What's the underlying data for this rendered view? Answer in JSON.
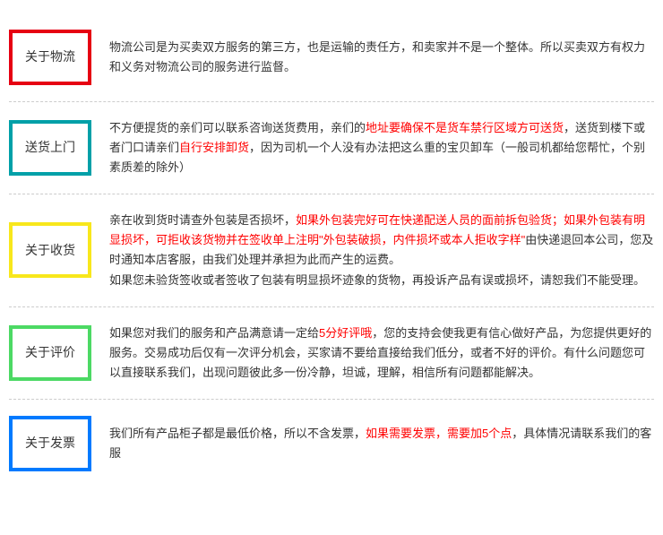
{
  "sections": [
    {
      "id": "logistics",
      "label": "关于物流",
      "border_color": "#e60012",
      "border_width": 4,
      "parts": [
        {
          "text": "物流公司是为买卖双方服务的第三方，也是运输的责任方，和卖家并不是一个整体。所以买卖双方有权力和义务对物流公司的服务进行监督。",
          "red": false
        }
      ]
    },
    {
      "id": "delivery",
      "label": "送货上门",
      "border_color": "#00a0a8",
      "border_width": 4,
      "parts": [
        {
          "text": "不方便提货的亲们可以联系咨询送货费用，亲们的",
          "red": false
        },
        {
          "text": "地址要确保不是货车禁行区域方可送货",
          "red": true
        },
        {
          "text": "，送货到楼下或者门口请亲们",
          "red": false
        },
        {
          "text": "自行安排卸货",
          "red": true
        },
        {
          "text": "，因为司机一个人没有办法把这么重的宝贝卸车（一般司机都给您帮忙，个别素质差的除外）",
          "red": false
        }
      ]
    },
    {
      "id": "receiving",
      "label": "关于收货",
      "border_color": "#f8e71c",
      "border_width": 4,
      "parts": [
        {
          "text": "亲在收到货时请查外包装是否损坏，",
          "red": false
        },
        {
          "text": "如果外包装完好可在快递配送人员的面前拆包验货；如果外包装有明显损坏，可拒收该货物并在签收单上注明\"外包装破损，内件损坏或本人拒收字样\"",
          "red": true
        },
        {
          "text": "由快递退回本公司，您及时通知本店客服，由我们处理并承担为此而产生的运费。",
          "red": false
        },
        {
          "text": "\n如果您未验货签收或者签收了包装有明显损坏迹象的货物，再投诉产品有误或损坏，请恕我们不能受理。",
          "red": false
        }
      ]
    },
    {
      "id": "review",
      "label": "关于评价",
      "border_color": "#4cd964",
      "border_width": 4,
      "parts": [
        {
          "text": "如果您对我们的服务和产品满意请一定给",
          "red": false
        },
        {
          "text": "5分好评哦",
          "red": true
        },
        {
          "text": "，您的支持会使我更有信心做好产品，为您提供更好的服务。交易成功后仅有一次评分机会，买家请不要给直接给我们低分，或者不好的评价。有什么问题您可以直接联系我们，出现问题彼此多一份冷静，坦诚，理解，相信所有问题都能解决。",
          "red": false
        }
      ]
    },
    {
      "id": "invoice",
      "label": "关于发票",
      "border_color": "#007aff",
      "border_width": 4,
      "parts": [
        {
          "text": "我们所有产品柜子都是最低价格，所以不含发票，",
          "red": false
        },
        {
          "text": "如果需要发票，需要加5个点",
          "red": true
        },
        {
          "text": "，具体情况请联系我们的客服",
          "red": false
        }
      ]
    }
  ]
}
